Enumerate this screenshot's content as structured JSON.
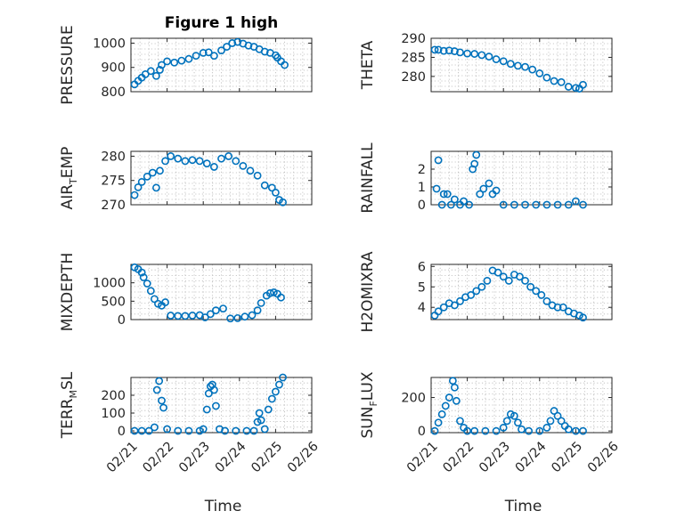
{
  "chart_data": [
    {
      "id": "p1",
      "type": "scatter",
      "title": "Figure 1 high",
      "ylabel": "PRESSURE",
      "ylim": [
        800,
        1020
      ],
      "yticks": [
        {
          "v": 800,
          "t": "800"
        },
        {
          "v": 900,
          "t": "900"
        },
        {
          "v": 1000,
          "t": "1000"
        }
      ],
      "xlim": [
        0,
        5
      ],
      "marker_color": "#0072BD",
      "x": [
        0.1,
        0.2,
        0.3,
        0.4,
        0.55,
        0.7,
        0.8,
        0.85,
        1.0,
        1.2,
        1.4,
        1.6,
        1.8,
        2.0,
        2.15,
        2.3,
        2.5,
        2.65,
        2.8,
        2.95,
        3.1,
        3.25,
        3.4,
        3.55,
        3.7,
        3.85,
        4.0,
        4.05,
        4.15,
        4.25
      ],
      "y": [
        830,
        845,
        858,
        872,
        885,
        865,
        890,
        910,
        925,
        920,
        928,
        935,
        948,
        960,
        962,
        948,
        970,
        985,
        1000,
        1005,
        998,
        990,
        985,
        975,
        965,
        960,
        950,
        940,
        925,
        910
      ]
    },
    {
      "id": "p2",
      "type": "scatter",
      "ylabel": "THETA",
      "ylim": [
        276,
        290
      ],
      "yticks": [
        {
          "v": 280,
          "t": "280"
        },
        {
          "v": 285,
          "t": "285"
        },
        {
          "v": 290,
          "t": "290"
        }
      ],
      "xlim": [
        0,
        5
      ],
      "marker_color": "#0072BD",
      "x": [
        0.1,
        0.2,
        0.35,
        0.5,
        0.65,
        0.8,
        1.0,
        1.2,
        1.4,
        1.6,
        1.8,
        2.0,
        2.2,
        2.4,
        2.6,
        2.8,
        3.0,
        3.2,
        3.4,
        3.6,
        3.8,
        4.0,
        4.1,
        4.2
      ],
      "y": [
        287.0,
        287.0,
        286.7,
        286.8,
        286.6,
        286.3,
        286.0,
        285.9,
        285.6,
        285.2,
        284.5,
        284.0,
        283.3,
        282.8,
        282.5,
        281.8,
        280.8,
        279.7,
        278.8,
        278.5,
        277.3,
        277.0,
        276.8,
        277.8
      ]
    },
    {
      "id": "p3",
      "type": "scatter",
      "ylabel": "AIR_TEMP",
      "ylim": [
        270,
        281
      ],
      "yticks": [
        {
          "v": 270,
          "t": "270"
        },
        {
          "v": 275,
          "t": "275"
        },
        {
          "v": 280,
          "t": "280"
        }
      ],
      "xlim": [
        0,
        5
      ],
      "marker_color": "#0072BD",
      "x": [
        0.1,
        0.2,
        0.3,
        0.45,
        0.6,
        0.7,
        0.8,
        0.95,
        1.1,
        1.3,
        1.5,
        1.7,
        1.9,
        2.1,
        2.3,
        2.5,
        2.7,
        2.9,
        3.1,
        3.3,
        3.5,
        3.7,
        3.9,
        4.0,
        4.1,
        4.2
      ],
      "y": [
        272.0,
        273.6,
        274.7,
        275.8,
        276.6,
        273.5,
        277.0,
        279.0,
        280.0,
        279.5,
        279.0,
        279.2,
        279.0,
        278.5,
        277.8,
        279.5,
        280.0,
        279.0,
        278.0,
        277.0,
        276.0,
        274.0,
        273.5,
        272.5,
        271.0,
        270.5
      ]
    },
    {
      "id": "p4",
      "type": "scatter",
      "ylabel": "RAINFALL",
      "ylim": [
        0,
        3
      ],
      "yticks": [
        {
          "v": 0,
          "t": "0"
        },
        {
          "v": 1,
          "t": "1"
        },
        {
          "v": 2,
          "t": "2"
        }
      ],
      "xlim": [
        0,
        5
      ],
      "marker_color": "#0072BD",
      "x": [
        0.15,
        0.2,
        0.3,
        0.35,
        0.45,
        0.55,
        0.65,
        0.8,
        0.9,
        1.05,
        1.15,
        1.2,
        1.25,
        1.35,
        1.45,
        1.6,
        1.7,
        1.8,
        2.0,
        2.3,
        2.6,
        2.9,
        3.2,
        3.5,
        3.8,
        4.0,
        4.2
      ],
      "y": [
        0.9,
        2.5,
        0.0,
        0.6,
        0.6,
        0.0,
        0.3,
        0.0,
        0.2,
        0.0,
        2.0,
        2.3,
        2.8,
        0.6,
        0.9,
        1.2,
        0.6,
        0.8,
        0.0,
        0.0,
        0.0,
        0.0,
        0.0,
        0.0,
        0.0,
        0.2,
        0.0
      ]
    },
    {
      "id": "p5",
      "type": "scatter",
      "ylabel": "MIXDEPTH",
      "ylim": [
        0,
        1500
      ],
      "yticks": [
        {
          "v": 0,
          "t": "0"
        },
        {
          "v": 500,
          "t": "500"
        },
        {
          "v": 1000,
          "t": "1000"
        }
      ],
      "xlim": [
        0,
        5
      ],
      "marker_color": "#0072BD",
      "x": [
        0.1,
        0.2,
        0.3,
        0.35,
        0.45,
        0.55,
        0.65,
        0.75,
        0.85,
        0.95,
        1.1,
        1.3,
        1.5,
        1.7,
        1.9,
        2.05,
        2.2,
        2.35,
        2.55,
        2.75,
        2.95,
        3.15,
        3.35,
        3.5,
        3.6,
        3.75,
        3.85,
        3.95,
        4.05,
        4.15
      ],
      "y": [
        1420,
        1370,
        1280,
        1150,
        980,
        780,
        560,
        430,
        380,
        470,
        110,
        100,
        100,
        110,
        120,
        60,
        150,
        250,
        300,
        30,
        40,
        80,
        120,
        250,
        450,
        650,
        720,
        740,
        700,
        600
      ]
    },
    {
      "id": "p6",
      "type": "scatter",
      "ylabel": "H2OMIXRA",
      "ylim": [
        3.4,
        6.1
      ],
      "yticks": [
        {
          "v": 4,
          "t": "4"
        },
        {
          "v": 5,
          "t": "5"
        },
        {
          "v": 6,
          "t": "6"
        }
      ],
      "xlim": [
        0,
        5
      ],
      "marker_color": "#0072BD",
      "x": [
        0.1,
        0.2,
        0.35,
        0.5,
        0.65,
        0.8,
        0.95,
        1.1,
        1.25,
        1.4,
        1.55,
        1.7,
        1.85,
        2.0,
        2.15,
        2.3,
        2.45,
        2.6,
        2.75,
        2.9,
        3.05,
        3.2,
        3.35,
        3.5,
        3.65,
        3.8,
        3.95,
        4.1,
        4.2
      ],
      "y": [
        3.6,
        3.8,
        4.0,
        4.2,
        4.1,
        4.3,
        4.5,
        4.6,
        4.8,
        5.0,
        5.3,
        5.8,
        5.7,
        5.5,
        5.3,
        5.6,
        5.5,
        5.3,
        5.0,
        4.8,
        4.6,
        4.3,
        4.1,
        4.0,
        4.0,
        3.8,
        3.7,
        3.6,
        3.5
      ]
    },
    {
      "id": "p7",
      "type": "scatter",
      "ylabel": "TERR_MSL",
      "ylim": [
        -10,
        300
      ],
      "yticks": [
        {
          "v": 0,
          "t": "0"
        },
        {
          "v": 100,
          "t": "100"
        },
        {
          "v": 200,
          "t": "200"
        }
      ],
      "xlim": [
        0,
        5
      ],
      "marker_color": "#0072BD",
      "x": [
        0.1,
        0.3,
        0.5,
        0.65,
        0.72,
        0.78,
        0.85,
        0.9,
        1.0,
        1.3,
        1.6,
        1.9,
        2.0,
        2.1,
        2.15,
        2.2,
        2.25,
        2.3,
        2.35,
        2.45,
        2.6,
        2.9,
        3.2,
        3.4,
        3.5,
        3.55,
        3.6,
        3.7,
        3.8,
        3.9,
        4.0,
        4.1,
        4.2
      ],
      "y": [
        0,
        0,
        0,
        20,
        230,
        280,
        170,
        130,
        10,
        0,
        0,
        0,
        10,
        120,
        210,
        250,
        260,
        230,
        140,
        10,
        0,
        0,
        0,
        0,
        50,
        100,
        60,
        10,
        120,
        180,
        220,
        260,
        300
      ]
    },
    {
      "id": "p8",
      "type": "scatter",
      "ylabel": "SUN_FLUX",
      "ylim": [
        -10,
        320
      ],
      "yticks": [
        {
          "v": 0,
          "t": "0"
        },
        {
          "v": 200,
          "t": "200"
        }
      ],
      "xlim": [
        0,
        5
      ],
      "marker_color": "#0072BD",
      "x": [
        0.1,
        0.2,
        0.3,
        0.4,
        0.5,
        0.6,
        0.65,
        0.7,
        0.8,
        0.9,
        1.0,
        1.2,
        1.5,
        1.8,
        2.0,
        2.1,
        2.2,
        2.3,
        2.4,
        2.5,
        2.7,
        3.0,
        3.2,
        3.3,
        3.4,
        3.5,
        3.6,
        3.7,
        3.8,
        4.0,
        4.2
      ],
      "y": [
        0,
        50,
        100,
        150,
        200,
        300,
        260,
        180,
        60,
        20,
        0,
        0,
        0,
        0,
        20,
        60,
        100,
        90,
        50,
        10,
        0,
        0,
        20,
        60,
        120,
        90,
        60,
        30,
        10,
        0,
        0
      ]
    }
  ],
  "x_axis": {
    "label": "Time",
    "ticks": [
      {
        "v": 0,
        "t": "02/21"
      },
      {
        "v": 1,
        "t": "02/22"
      },
      {
        "v": 2,
        "t": "02/23"
      },
      {
        "v": 3,
        "t": "02/24"
      },
      {
        "v": 4,
        "t": "02/25"
      },
      {
        "v": 5,
        "t": "02/26"
      }
    ]
  }
}
